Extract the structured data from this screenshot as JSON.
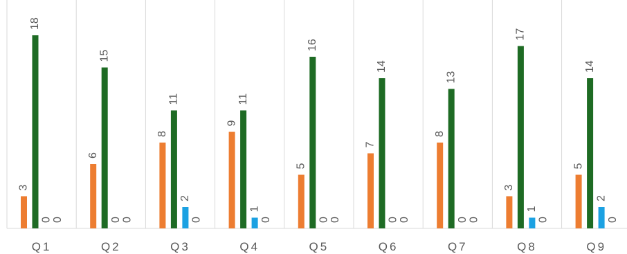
{
  "chart_data": {
    "type": "bar",
    "title": "",
    "xlabel": "",
    "ylabel": "",
    "categories": [
      "Q1",
      "Q2",
      "Q3",
      "Q4",
      "Q5",
      "Q6",
      "Q7",
      "Q8",
      "Q9"
    ],
    "ylim": [
      0,
      20
    ],
    "grid": "vertical category separators",
    "legend": "none",
    "series": [
      {
        "color": "#ED7D31",
        "values": [
          3,
          6,
          8,
          9,
          5,
          7,
          8,
          3,
          5
        ]
      },
      {
        "color": "#1E6B24",
        "values": [
          18,
          15,
          11,
          11,
          16,
          14,
          13,
          17,
          14
        ]
      },
      {
        "color": "#1BA1E2",
        "values": [
          0,
          0,
          2,
          1,
          0,
          0,
          0,
          1,
          2
        ]
      },
      {
        "color": "#7F7F7F",
        "values": [
          0,
          0,
          0,
          0,
          0,
          0,
          0,
          0,
          0
        ]
      }
    ]
  }
}
